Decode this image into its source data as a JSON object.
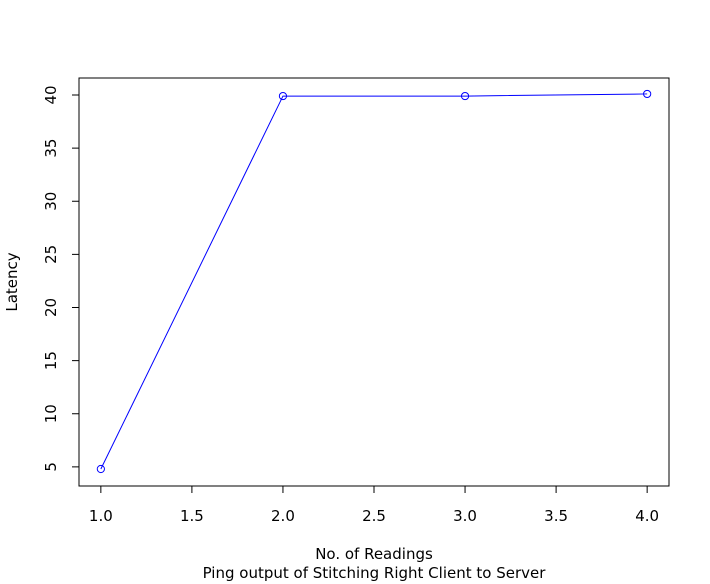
{
  "chart_data": {
    "type": "line",
    "title": "",
    "xlabel": "No. of Readings",
    "ylabel": "Latency",
    "subtitle": "Ping output of Stitching Right Client to Server",
    "x": [
      1.0,
      2.0,
      3.0,
      4.0
    ],
    "series": [
      {
        "values": [
          4.8,
          39.9,
          39.9,
          40.1
        ],
        "color": "#0000ff",
        "marker": "open-circle"
      }
    ],
    "xlim": [
      0.88,
      4.12
    ],
    "ylim": [
      3.2,
      41.6
    ],
    "xticks": [
      1.0,
      1.5,
      2.0,
      2.5,
      3.0,
      3.5,
      4.0
    ],
    "xtick_labels": [
      "1.0",
      "1.5",
      "2.0",
      "2.5",
      "3.0",
      "3.5",
      "4.0"
    ],
    "yticks": [
      5,
      10,
      15,
      20,
      25,
      30,
      35,
      40
    ],
    "ytick_labels": [
      "5",
      "10",
      "15",
      "20",
      "25",
      "30",
      "35",
      "40"
    ],
    "grid": false,
    "legend": "none"
  }
}
